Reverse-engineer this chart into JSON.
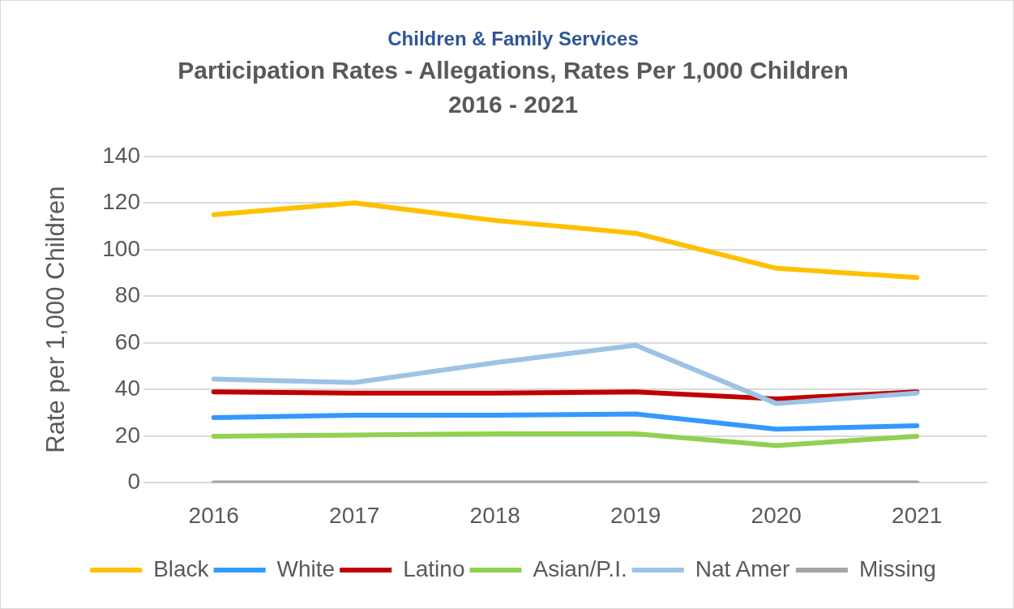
{
  "chart_data": {
    "type": "line",
    "title": "Children & Family Services",
    "subtitle": "Participation Rates - Allegations, Rates Per 1,000 Children\n2016 - 2021",
    "ylabel": "Rate per 1,000 Children",
    "categories": [
      "2016",
      "2017",
      "2018",
      "2019",
      "2020",
      "2021"
    ],
    "series": [
      {
        "name": "Black",
        "color": "#ffc000",
        "values": [
          115,
          120,
          112.5,
          107,
          92,
          88
        ]
      },
      {
        "name": "White",
        "color": "#3399ff",
        "values": [
          28,
          29,
          29,
          29.5,
          23,
          24.5
        ]
      },
      {
        "name": "Latino",
        "color": "#c00000",
        "values": [
          39,
          38.5,
          38.5,
          39,
          36,
          39
        ]
      },
      {
        "name": "Asian/P.I.",
        "color": "#92d050",
        "values": [
          20,
          20.5,
          21,
          21,
          16,
          20
        ]
      },
      {
        "name": "Nat Amer",
        "color": "#9dc3e6",
        "values": [
          44.5,
          43,
          51.5,
          59,
          34,
          38.5
        ]
      },
      {
        "name": "Missing",
        "color": "#a5a5a5",
        "values": [
          0,
          0,
          0,
          0,
          0,
          0
        ]
      }
    ],
    "ylim": [
      0,
      140
    ],
    "yticks": [
      0,
      20,
      40,
      60,
      80,
      100,
      120,
      140
    ],
    "grid": "y",
    "legend": "bottom",
    "marker": "none"
  }
}
